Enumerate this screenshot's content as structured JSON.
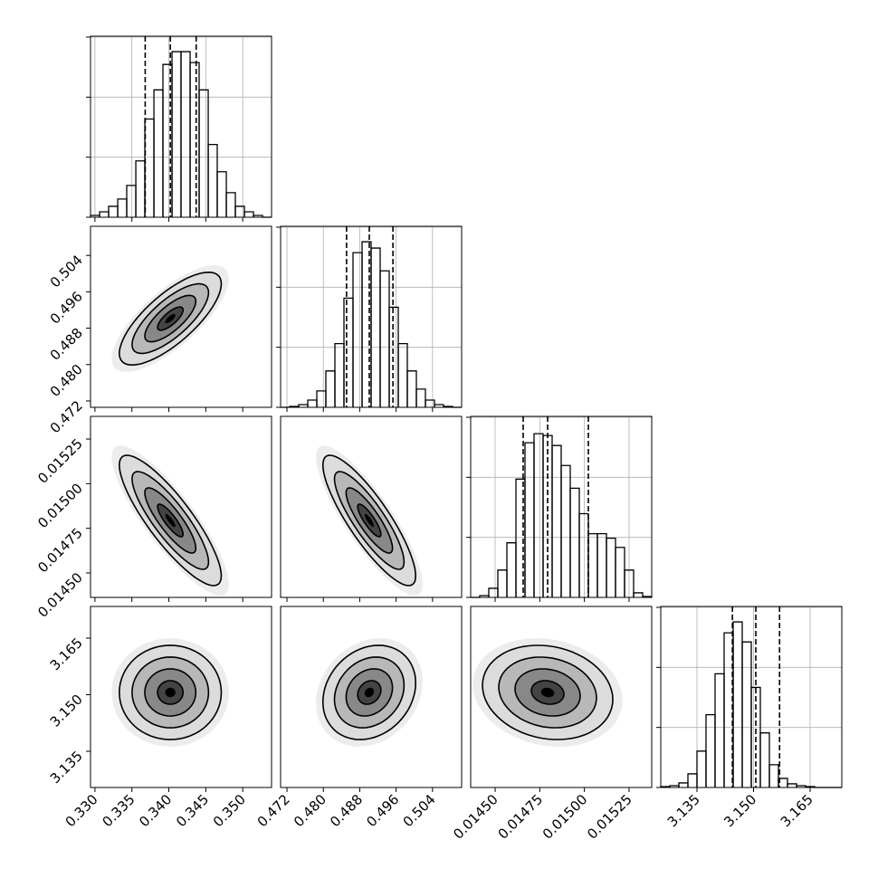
{
  "chart_data": {
    "type": "corner",
    "color": "#000000",
    "grid": true,
    "hist_ylim": [
      0,
      3000
    ],
    "hist_yticks": [
      0,
      1000,
      2000,
      3000
    ],
    "params": [
      {
        "lim": [
          0.3294,
          0.3539
        ],
        "ticks": [
          {
            "value": 0.33,
            "label": "0.330"
          },
          0.335,
          {
            "value": 0.34,
            "label": "0.340"
          },
          0.345,
          {
            "value": 0.35,
            "label": "0.350"
          }
        ],
        "quantiles": [
          0.3368,
          0.3402,
          0.3437
        ],
        "bins": [
          0.3294,
          0.33063,
          0.33185,
          0.33308,
          0.3343,
          0.33553,
          0.33675,
          0.33798,
          0.3392,
          0.34043,
          0.34165,
          0.34288,
          0.3441,
          0.34533,
          0.34655,
          0.34778,
          0.349,
          0.35023,
          0.35145,
          0.35268,
          0.3539
        ],
        "counts": [
          30,
          91,
          182,
          303,
          530,
          939,
          1636,
          2121,
          2545,
          2758,
          2758,
          2576,
          2121,
          1212,
          758,
          409,
          182,
          91,
          30,
          0
        ]
      },
      {
        "lim": [
          0.4706,
          0.5104
        ],
        "ticks": [
          0.472,
          {
            "value": 0.48,
            "label": "0.480"
          },
          0.488,
          0.496,
          0.504
        ],
        "quantiles": [
          0.4851,
          0.4901,
          0.4953
        ],
        "bins": [
          0.4706,
          0.47259,
          0.47458,
          0.47657,
          0.47856,
          0.48055,
          0.48254,
          0.48453,
          0.48652,
          0.48851,
          0.4905,
          0.49249,
          0.49448,
          0.49647,
          0.49846,
          0.50045,
          0.50244,
          0.50443,
          0.50642,
          0.50841,
          0.5104
        ],
        "counts": [
          0,
          15,
          45,
          121,
          273,
          606,
          1061,
          1818,
          2576,
          2758,
          2652,
          2273,
          1667,
          1061,
          606,
          303,
          121,
          45,
          15,
          0
        ]
      },
      {
        "lim": [
          0.014363,
          0.015377
        ],
        "ticks": [
          {
            "value": 0.0145,
            "label": "0.01450"
          },
          0.01475,
          {
            "value": 0.015,
            "label": "0.01500"
          },
          0.01525
        ],
        "quantiles": [
          0.014657,
          0.014794,
          0.015022
        ],
        "bins": [
          0.014363,
          0.0144137,
          0.0144644,
          0.0145151,
          0.0145658,
          0.0146165,
          0.0146672,
          0.0147179,
          0.0147686,
          0.0148193,
          0.01487,
          0.0149207,
          0.0149714,
          0.0150221,
          0.0150728,
          0.0151235,
          0.0151742,
          0.0152249,
          0.0152756,
          0.0153263,
          0.015377
        ],
        "counts": [
          0,
          30,
          152,
          455,
          909,
          1970,
          2576,
          2727,
          2697,
          2530,
          2197,
          1818,
          1394,
          1061,
          1061,
          985,
          833,
          455,
          76,
          15
        ]
      },
      {
        "lim": [
          3.1254,
          3.1734
        ],
        "ticks": [
          3.135,
          {
            "value": 3.15,
            "label": "3.150"
          },
          3.165
        ],
        "quantiles": [
          3.1444,
          3.1506,
          3.1569
        ],
        "bins": [
          3.1254,
          3.1278,
          3.1302,
          3.1326,
          3.135,
          3.1374,
          3.1398,
          3.1422,
          3.1446,
          3.147,
          3.1494,
          3.1518,
          3.1542,
          3.1566,
          3.159,
          3.1614,
          3.1638,
          3.1662,
          3.1686,
          3.171,
          3.1734
        ],
        "counts": [
          15,
          30,
          76,
          227,
          606,
          1212,
          1894,
          2576,
          2758,
          2424,
          1667,
          909,
          379,
          152,
          61,
          30,
          15,
          0,
          0,
          0
        ]
      }
    ],
    "panels": [
      {
        "x": 0,
        "y": 1,
        "corr": 0.75
      },
      {
        "x": 0,
        "y": 2,
        "corr": -0.85
      },
      {
        "x": 1,
        "y": 2,
        "corr": -0.85
      },
      {
        "x": 0,
        "y": 3,
        "corr": 0
      },
      {
        "x": 1,
        "y": 3,
        "corr": 0.2
      },
      {
        "x": 2,
        "y": 3,
        "corr": -0.15
      }
    ]
  }
}
